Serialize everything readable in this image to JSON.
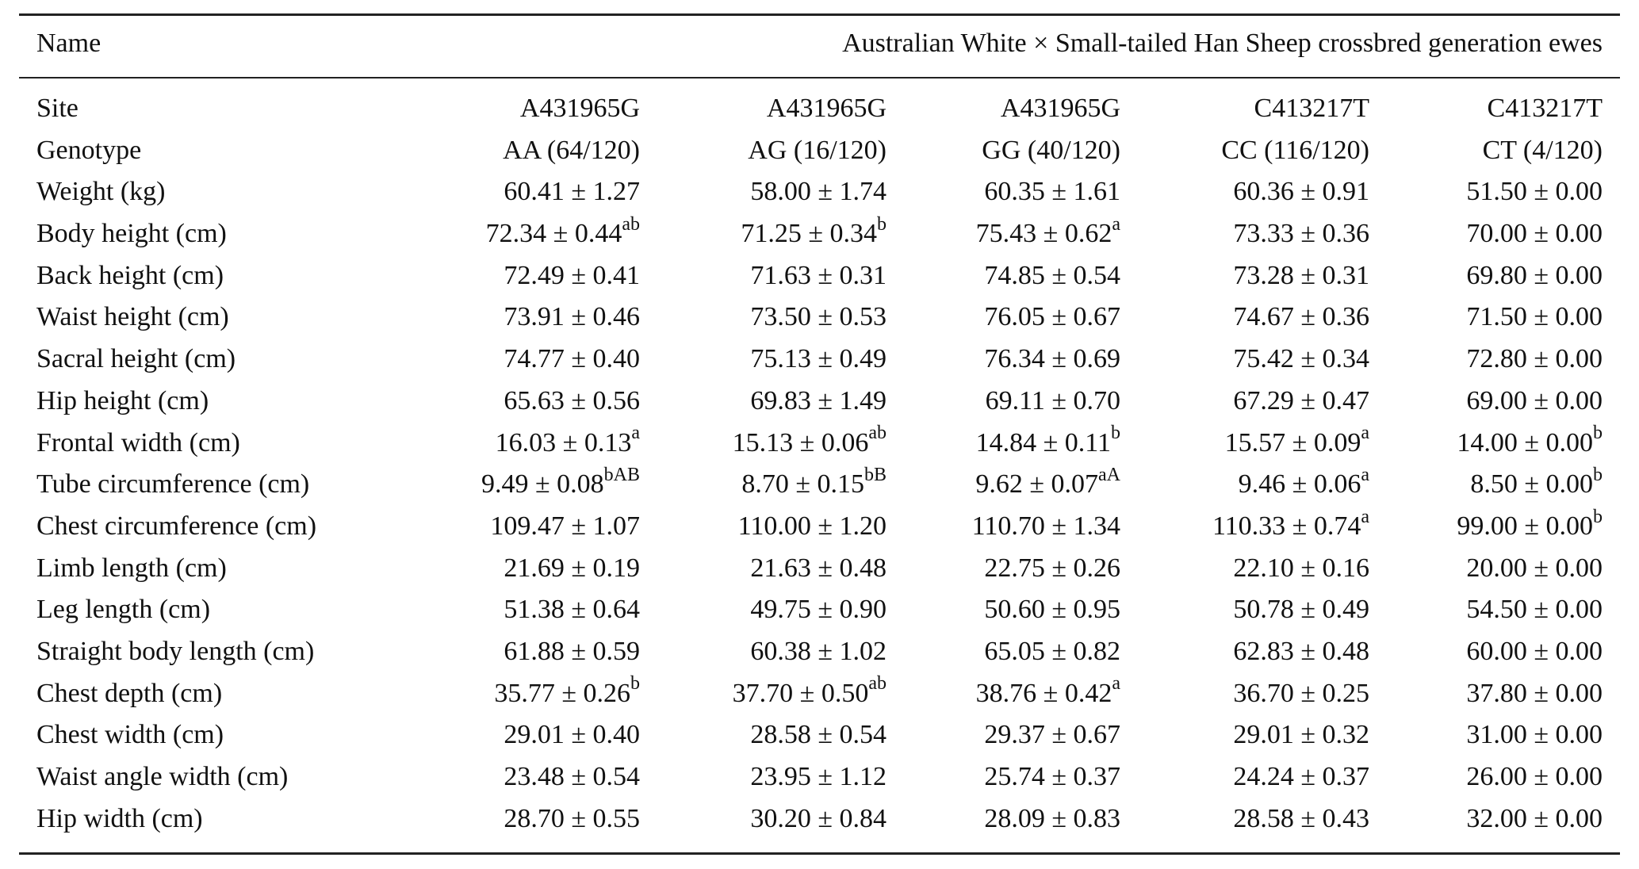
{
  "header": {
    "name": "Name",
    "group": "Australian White × Small-tailed Han Sheep crossbred generation ewes"
  },
  "rows": [
    {
      "label": "Site",
      "cells": [
        {
          "v": "A431965G",
          "s": ""
        },
        {
          "v": "A431965G",
          "s": ""
        },
        {
          "v": "A431965G",
          "s": ""
        },
        {
          "v": "C413217T",
          "s": ""
        },
        {
          "v": "C413217T",
          "s": ""
        }
      ]
    },
    {
      "label": "Genotype",
      "cells": [
        {
          "v": "AA (64/120)",
          "s": ""
        },
        {
          "v": "AG (16/120)",
          "s": ""
        },
        {
          "v": "GG (40/120)",
          "s": ""
        },
        {
          "v": "CC (116/120)",
          "s": ""
        },
        {
          "v": "CT (4/120)",
          "s": ""
        }
      ]
    },
    {
      "label": "Weight (kg)",
      "cells": [
        {
          "v": "60.41 ± 1.27",
          "s": ""
        },
        {
          "v": "58.00 ± 1.74",
          "s": ""
        },
        {
          "v": "60.35 ± 1.61",
          "s": ""
        },
        {
          "v": "60.36 ± 0.91",
          "s": ""
        },
        {
          "v": "51.50 ± 0.00",
          "s": ""
        }
      ]
    },
    {
      "label": "Body height (cm)",
      "cells": [
        {
          "v": "72.34 ± 0.44",
          "s": "ab"
        },
        {
          "v": "71.25 ± 0.34",
          "s": "b"
        },
        {
          "v": "75.43 ± 0.62",
          "s": "a"
        },
        {
          "v": "73.33 ± 0.36",
          "s": ""
        },
        {
          "v": "70.00 ± 0.00",
          "s": ""
        }
      ]
    },
    {
      "label": "Back height (cm)",
      "cells": [
        {
          "v": "72.49 ± 0.41",
          "s": ""
        },
        {
          "v": "71.63 ± 0.31",
          "s": ""
        },
        {
          "v": "74.85 ± 0.54",
          "s": ""
        },
        {
          "v": "73.28 ± 0.31",
          "s": ""
        },
        {
          "v": "69.80 ± 0.00",
          "s": ""
        }
      ]
    },
    {
      "label": "Waist height (cm)",
      "cells": [
        {
          "v": "73.91 ± 0.46",
          "s": ""
        },
        {
          "v": "73.50 ± 0.53",
          "s": ""
        },
        {
          "v": "76.05 ± 0.67",
          "s": ""
        },
        {
          "v": "74.67 ± 0.36",
          "s": ""
        },
        {
          "v": "71.50 ± 0.00",
          "s": ""
        }
      ]
    },
    {
      "label": "Sacral height (cm)",
      "cells": [
        {
          "v": "74.77 ± 0.40",
          "s": ""
        },
        {
          "v": "75.13 ± 0.49",
          "s": ""
        },
        {
          "v": "76.34 ± 0.69",
          "s": ""
        },
        {
          "v": "75.42 ± 0.34",
          "s": ""
        },
        {
          "v": "72.80 ± 0.00",
          "s": ""
        }
      ]
    },
    {
      "label": "Hip height (cm)",
      "cells": [
        {
          "v": "65.63 ± 0.56",
          "s": ""
        },
        {
          "v": "69.83 ± 1.49",
          "s": ""
        },
        {
          "v": "69.11 ± 0.70",
          "s": ""
        },
        {
          "v": "67.29 ± 0.47",
          "s": ""
        },
        {
          "v": "69.00 ± 0.00",
          "s": ""
        }
      ]
    },
    {
      "label": "Frontal width (cm)",
      "cells": [
        {
          "v": "16.03 ± 0.13",
          "s": "a"
        },
        {
          "v": "15.13 ± 0.06",
          "s": "ab"
        },
        {
          "v": "14.84 ± 0.11",
          "s": "b"
        },
        {
          "v": "15.57 ± 0.09",
          "s": "a"
        },
        {
          "v": "14.00 ± 0.00",
          "s": "b"
        }
      ]
    },
    {
      "label": "Tube circumference (cm)",
      "cells": [
        {
          "v": "9.49 ± 0.08",
          "s": "bAB"
        },
        {
          "v": "8.70 ± 0.15",
          "s": "bB"
        },
        {
          "v": "9.62 ± 0.07",
          "s": "aA"
        },
        {
          "v": "9.46 ± 0.06",
          "s": "a"
        },
        {
          "v": "8.50 ± 0.00",
          "s": "b"
        }
      ]
    },
    {
      "label": "Chest circumference (cm)",
      "cells": [
        {
          "v": "109.47 ± 1.07",
          "s": ""
        },
        {
          "v": "110.00 ± 1.20",
          "s": ""
        },
        {
          "v": "110.70 ± 1.34",
          "s": ""
        },
        {
          "v": "110.33 ± 0.74",
          "s": "a"
        },
        {
          "v": "99.00 ± 0.00",
          "s": "b"
        }
      ]
    },
    {
      "label": "Limb length (cm)",
      "cells": [
        {
          "v": "21.69 ± 0.19",
          "s": ""
        },
        {
          "v": "21.63 ± 0.48",
          "s": ""
        },
        {
          "v": "22.75 ± 0.26",
          "s": ""
        },
        {
          "v": "22.10 ± 0.16",
          "s": ""
        },
        {
          "v": "20.00 ± 0.00",
          "s": ""
        }
      ]
    },
    {
      "label": "Leg length (cm)",
      "cells": [
        {
          "v": "51.38 ± 0.64",
          "s": ""
        },
        {
          "v": "49.75 ± 0.90",
          "s": ""
        },
        {
          "v": "50.60 ± 0.95",
          "s": ""
        },
        {
          "v": "50.78 ± 0.49",
          "s": ""
        },
        {
          "v": "54.50 ± 0.00",
          "s": ""
        }
      ]
    },
    {
      "label": "Straight body length (cm)",
      "cells": [
        {
          "v": "61.88 ± 0.59",
          "s": ""
        },
        {
          "v": "60.38 ± 1.02",
          "s": ""
        },
        {
          "v": "65.05 ± 0.82",
          "s": ""
        },
        {
          "v": "62.83 ± 0.48",
          "s": ""
        },
        {
          "v": "60.00 ± 0.00",
          "s": ""
        }
      ]
    },
    {
      "label": "Chest depth (cm)",
      "cells": [
        {
          "v": "35.77 ± 0.26",
          "s": "b"
        },
        {
          "v": "37.70 ± 0.50",
          "s": "ab"
        },
        {
          "v": "38.76 ± 0.42",
          "s": "a"
        },
        {
          "v": "36.70 ± 0.25",
          "s": ""
        },
        {
          "v": "37.80 ± 0.00",
          "s": ""
        }
      ]
    },
    {
      "label": "Chest width (cm)",
      "cells": [
        {
          "v": "29.01 ± 0.40",
          "s": ""
        },
        {
          "v": "28.58 ± 0.54",
          "s": ""
        },
        {
          "v": "29.37 ± 0.67",
          "s": ""
        },
        {
          "v": "29.01 ± 0.32",
          "s": ""
        },
        {
          "v": "31.00 ± 0.00",
          "s": ""
        }
      ]
    },
    {
      "label": "Waist angle width (cm)",
      "cells": [
        {
          "v": "23.48 ± 0.54",
          "s": ""
        },
        {
          "v": "23.95 ± 1.12",
          "s": ""
        },
        {
          "v": "25.74 ± 0.37",
          "s": ""
        },
        {
          "v": "24.24 ± 0.37",
          "s": ""
        },
        {
          "v": "26.00 ± 0.00",
          "s": ""
        }
      ]
    },
    {
      "label": "Hip width (cm)",
      "cells": [
        {
          "v": "28.70 ± 0.55",
          "s": ""
        },
        {
          "v": "30.20 ± 0.84",
          "s": ""
        },
        {
          "v": "28.09 ± 0.83",
          "s": ""
        },
        {
          "v": "28.58 ± 0.43",
          "s": ""
        },
        {
          "v": "32.00 ± 0.00",
          "s": ""
        }
      ]
    }
  ]
}
